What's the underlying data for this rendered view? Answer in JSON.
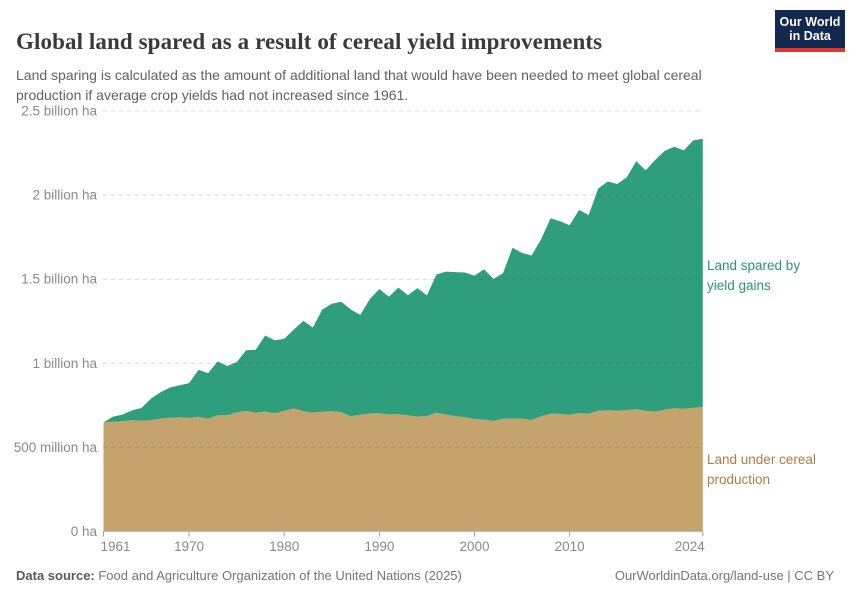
{
  "header": {
    "title": "Global land spared as a result of cereal yield improvements",
    "subtitle": "Land sparing is calculated as the amount of additional land that would have been needed to meet global cereal production if average crop yields had not increased since 1961.",
    "logo": {
      "line1": "Our World",
      "line2": "in Data"
    }
  },
  "footer": {
    "source_label": "Data source:",
    "source_text": " Food and Agriculture Organization of the United Nations (2025)",
    "credit": "OurWorldinData.org/land-use | CC BY"
  },
  "chart_data": {
    "type": "area",
    "stacked": true,
    "title": "Global land spared as a result of cereal yield improvements",
    "xlabel": "",
    "ylabel": "hectares",
    "ylim": [
      0,
      2.5
    ],
    "grid": true,
    "legend_position": "right-annotations",
    "x": [
      1961,
      1962,
      1963,
      1964,
      1965,
      1966,
      1967,
      1968,
      1969,
      1970,
      1971,
      1972,
      1973,
      1974,
      1975,
      1976,
      1977,
      1978,
      1979,
      1980,
      1981,
      1982,
      1983,
      1984,
      1985,
      1986,
      1987,
      1988,
      1989,
      1990,
      1991,
      1992,
      1993,
      1994,
      1995,
      1996,
      1997,
      1998,
      1999,
      2000,
      2001,
      2002,
      2003,
      2004,
      2005,
      2006,
      2007,
      2008,
      2009,
      2010,
      2011,
      2012,
      2013,
      2014,
      2015,
      2016,
      2017,
      2018,
      2019,
      2020,
      2021,
      2022,
      2023,
      2024
    ],
    "xticks": [
      1961,
      1970,
      1980,
      1990,
      2000,
      2010,
      2024
    ],
    "yticks": [
      {
        "value": 0.0,
        "label": "0 ha"
      },
      {
        "value": 0.5,
        "label": "500 million ha"
      },
      {
        "value": 1.0,
        "label": "1 billion ha"
      },
      {
        "value": 1.5,
        "label": "1.5 billion ha"
      },
      {
        "value": 2.0,
        "label": "2 billion ha"
      },
      {
        "value": 2.5,
        "label": "2.5 billion ha"
      }
    ],
    "unit": "billion ha",
    "series": [
      {
        "name": "Land under cereal production",
        "color": "#c5a36c",
        "label_color": "#ab7d45",
        "values": [
          0.648,
          0.652,
          0.655,
          0.662,
          0.659,
          0.662,
          0.672,
          0.676,
          0.679,
          0.675,
          0.682,
          0.67,
          0.69,
          0.691,
          0.708,
          0.717,
          0.707,
          0.713,
          0.703,
          0.717,
          0.732,
          0.716,
          0.707,
          0.712,
          0.715,
          0.71,
          0.685,
          0.694,
          0.702,
          0.703,
          0.696,
          0.698,
          0.69,
          0.684,
          0.685,
          0.707,
          0.695,
          0.686,
          0.679,
          0.668,
          0.665,
          0.657,
          0.672,
          0.67,
          0.672,
          0.663,
          0.685,
          0.7,
          0.699,
          0.693,
          0.705,
          0.7,
          0.718,
          0.721,
          0.719,
          0.722,
          0.728,
          0.717,
          0.713,
          0.724,
          0.733,
          0.73,
          0.736,
          0.74
        ]
      },
      {
        "name": "Land spared by yield gains",
        "color": "#2f9e7d",
        "label_color": "#2a9476",
        "values": [
          0.0,
          0.031,
          0.04,
          0.058,
          0.076,
          0.129,
          0.156,
          0.18,
          0.19,
          0.207,
          0.279,
          0.271,
          0.321,
          0.293,
          0.299,
          0.36,
          0.374,
          0.452,
          0.433,
          0.428,
          0.469,
          0.536,
          0.506,
          0.608,
          0.639,
          0.656,
          0.635,
          0.593,
          0.681,
          0.739,
          0.7,
          0.752,
          0.714,
          0.763,
          0.718,
          0.821,
          0.85,
          0.856,
          0.861,
          0.853,
          0.894,
          0.845,
          0.863,
          1.017,
          0.984,
          0.978,
          1.052,
          1.162,
          1.145,
          1.128,
          1.207,
          1.181,
          1.321,
          1.36,
          1.347,
          1.383,
          1.474,
          1.43,
          1.496,
          1.539,
          1.555,
          1.536,
          1.589,
          1.594
        ]
      }
    ]
  }
}
